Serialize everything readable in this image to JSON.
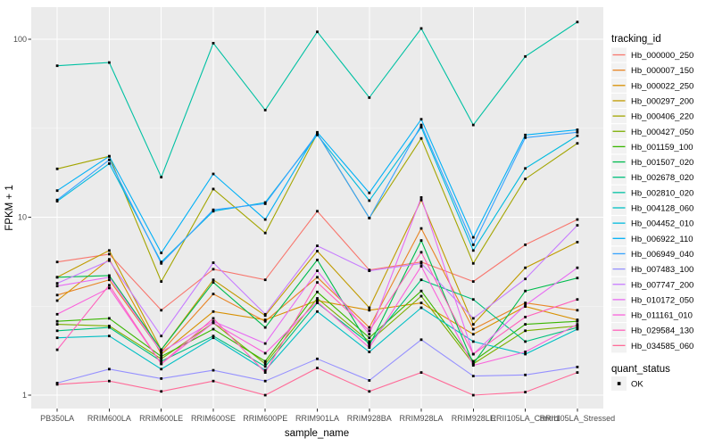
{
  "figure": {
    "y_axis_title": "FPKM + 1",
    "x_axis_title": "sample_name"
  },
  "axes": {
    "y_scale": "log10",
    "y_ticks": [
      1,
      10,
      100
    ],
    "y_minor_ticks": [
      3.1623,
      31.623
    ],
    "x_tick_labels": [
      "PB350LA",
      "RRIM600LA",
      "RRIM600LE",
      "RRIM600SE",
      "RRIM600PE",
      "RRIM901LA",
      "RRIM928BA",
      "RRIM928LA",
      "RRIM928LE",
      "RRII105LA_Control",
      "RRII105LA_Stressed"
    ]
  },
  "legend": {
    "color_title": "tracking_id",
    "shape_title": "quant_status",
    "shape_items": [
      {
        "label": "OK",
        "shape": "filled-square",
        "color": "#000000"
      }
    ]
  },
  "colors": {
    "panel_bg": "#EBEBEB",
    "grid_major": "#FFFFFF",
    "grid_minor": "#F7F7F7",
    "tick_text": "#4D4D4D",
    "tick_mark": "#333333",
    "point": "#000000",
    "legend_key_bg": "#F2F2F2",
    "axis_title_text": "#000000"
  },
  "chart_data": {
    "type": "line",
    "title": "",
    "xlabel": "sample_name",
    "ylabel": "FPKM + 1",
    "y_scale": "log10",
    "ylim": [
      0.95,
      140
    ],
    "grid": true,
    "legend_position": "right",
    "point_marker": "black-square",
    "categories": [
      "PB350LA",
      "RRIM600LA",
      "RRIM600LE",
      "RRIM600SE",
      "RRIM600PE",
      "RRIM901LA",
      "RRIM928BA",
      "RRIM928LA",
      "RRIM928LE",
      "RRII105LA_Control",
      "RRII105LA_Stressed"
    ],
    "series": [
      {
        "name": "Hb_000000_250",
        "color": "#F8766D",
        "values": [
          5.6,
          6.2,
          3.0,
          5.1,
          4.45,
          10.8,
          5.05,
          5.6,
          4.35,
          7.0,
          9.7
        ]
      },
      {
        "name": "Hb_000007_150",
        "color": "#E88526",
        "values": [
          3.65,
          4.45,
          1.75,
          3.7,
          2.6,
          4.6,
          2.4,
          8.65,
          2.35,
          3.3,
          3.0
        ]
      },
      {
        "name": "Hb_000022_250",
        "color": "#D89000",
        "values": [
          3.4,
          5.8,
          1.7,
          2.95,
          2.65,
          3.4,
          3.0,
          3.3,
          2.2,
          3.15,
          2.65
        ]
      },
      {
        "name": "Hb_000297_200",
        "color": "#C09B00",
        "values": [
          4.6,
          6.5,
          1.8,
          4.45,
          2.8,
          6.45,
          3.1,
          12.5,
          2.5,
          5.2,
          7.25
        ]
      },
      {
        "name": "Hb_000406_220",
        "color": "#A3A500",
        "values": [
          18.7,
          22,
          4.35,
          14.4,
          8.15,
          29.5,
          9.9,
          27.7,
          5.5,
          16.4,
          26
        ]
      },
      {
        "name": "Hb_000427_050",
        "color": "#7CAE00",
        "values": [
          2.5,
          2.45,
          1.6,
          2.55,
          1.5,
          3.5,
          2.0,
          3.6,
          1.5,
          2.3,
          2.45
        ]
      },
      {
        "name": "Hb_001159_100",
        "color": "#39B600",
        "values": [
          2.6,
          2.7,
          1.65,
          2.35,
          1.55,
          3.8,
          2.1,
          3.85,
          1.55,
          2.5,
          2.6
        ]
      },
      {
        "name": "Hb_001507_020",
        "color": "#00BB4E",
        "values": [
          4.6,
          4.7,
          1.8,
          4.3,
          2.4,
          5.75,
          1.9,
          7.4,
          1.5,
          3.85,
          4.55
        ]
      },
      {
        "name": "Hb_002678_020",
        "color": "#00BF7D",
        "values": [
          2.3,
          2.4,
          1.55,
          2.15,
          1.45,
          3.3,
          1.95,
          4.45,
          3.45,
          2.0,
          2.4
        ]
      },
      {
        "name": "Hb_002810_020",
        "color": "#00C1A3",
        "values": [
          71,
          74,
          16.8,
          95,
          40,
          110,
          47,
          115,
          33,
          80,
          125
        ]
      },
      {
        "name": "Hb_004128_060",
        "color": "#00BFC4",
        "values": [
          2.1,
          2.15,
          1.4,
          2.1,
          1.38,
          2.95,
          1.75,
          3.1,
          2.0,
          1.7,
          2.35
        ]
      },
      {
        "name": "Hb_004452_010",
        "color": "#00BADE",
        "values": [
          12.3,
          20,
          5.6,
          10.8,
          12.1,
          29,
          12.4,
          32,
          6.5,
          18.8,
          28.7
        ]
      },
      {
        "name": "Hb_006922_110",
        "color": "#00B0F6",
        "values": [
          14.1,
          22,
          6.3,
          17.5,
          9.7,
          30,
          13.7,
          35.5,
          7.7,
          29,
          31
        ]
      },
      {
        "name": "Hb_006949_040",
        "color": "#35A2FF",
        "values": [
          12.5,
          21,
          5.5,
          11,
          11.9,
          29.5,
          9.9,
          33,
          7.0,
          28,
          30
        ]
      },
      {
        "name": "Hb_007483_100",
        "color": "#9590FF",
        "values": [
          1.17,
          1.4,
          1.24,
          1.38,
          1.2,
          1.6,
          1.21,
          2.05,
          1.28,
          1.3,
          1.44
        ]
      },
      {
        "name": "Hb_007747_200",
        "color": "#C77CFF",
        "values": [
          4.25,
          5.7,
          2.15,
          5.55,
          2.85,
          6.9,
          5.0,
          5.5,
          2.7,
          4.5,
          9.0
        ]
      },
      {
        "name": "Hb_010172_050",
        "color": "#E76BF3",
        "values": [
          4.1,
          4.6,
          1.75,
          2.6,
          1.95,
          5.0,
          2.2,
          12.9,
          1.7,
          3.2,
          5.2
        ]
      },
      {
        "name": "Hb_011161_010",
        "color": "#FA62DB",
        "values": [
          2.85,
          4.0,
          1.5,
          2.55,
          1.72,
          3.35,
          1.85,
          5.3,
          1.47,
          1.75,
          2.5
        ]
      },
      {
        "name": "Hb_029584_130",
        "color": "#FF62BC",
        "values": [
          1.8,
          4.15,
          1.5,
          2.7,
          1.34,
          4.3,
          2.3,
          6.35,
          1.7,
          2.75,
          3.45
        ]
      },
      {
        "name": "Hb_034585_060",
        "color": "#FF6A98",
        "values": [
          1.15,
          1.2,
          1.05,
          1.2,
          1.0,
          1.42,
          1.05,
          1.34,
          1.0,
          1.04,
          1.34
        ]
      }
    ]
  }
}
